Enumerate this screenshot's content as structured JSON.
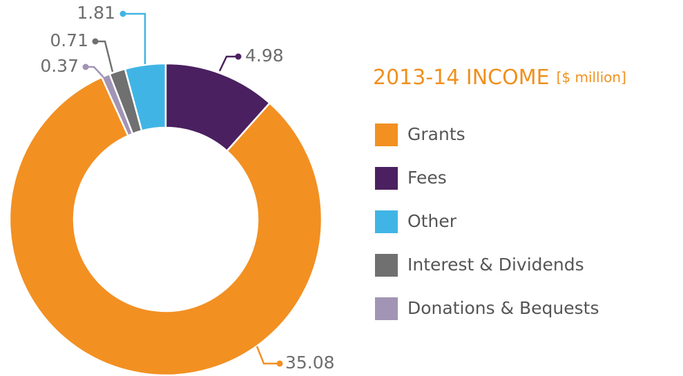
{
  "chart_data": {
    "type": "donut",
    "title": "2013-14 INCOME",
    "subtitle": "[$ million]",
    "series": [
      {
        "name": "Grants",
        "color": "#f29022",
        "values": [
          35.08
        ]
      },
      {
        "name": "Fees",
        "color": "#4a2060",
        "values": [
          4.98
        ]
      },
      {
        "name": "Other",
        "color": "#40b5e5",
        "values": [
          1.81
        ]
      },
      {
        "name": "Interest & Dividends",
        "color": "#707070",
        "values": [
          0.71
        ]
      },
      {
        "name": "Donations & Bequests",
        "color": "#a294b4",
        "values": [
          0.37
        ]
      }
    ]
  }
}
